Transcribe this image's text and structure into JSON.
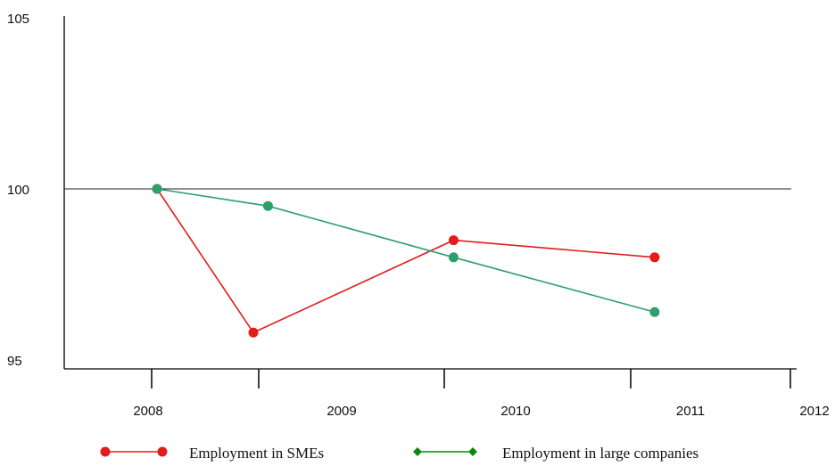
{
  "chart_data": {
    "type": "line",
    "title": "",
    "xlabel": "",
    "ylabel": "",
    "ylim": [
      95,
      105
    ],
    "y_ticks": [
      "95",
      "100",
      "105"
    ],
    "x_ticks": [
      "2008",
      "2009",
      "2010",
      "2011",
      "2012"
    ],
    "reference_line": 100,
    "grid": false,
    "legend_position": "bottom",
    "series": [
      {
        "name": "Employment in SMEs",
        "color": "#e31b1b",
        "marker": "circle",
        "points": [
          {
            "x": 2008.05,
            "y": 100.0
          },
          {
            "x": 2008.95,
            "y": 95.8
          },
          {
            "x": 2010.05,
            "y": 98.5
          },
          {
            "x": 2011.15,
            "y": 98.0
          }
        ]
      },
      {
        "name": "Employment in large companies",
        "color": "#2e9e6b",
        "legend_color": "#0a8a0a",
        "marker": "circle",
        "points": [
          {
            "x": 2008.05,
            "y": 100.0
          },
          {
            "x": 2009.05,
            "y": 99.5
          },
          {
            "x": 2010.05,
            "y": 98.0
          },
          {
            "x": 2011.15,
            "y": 96.4
          }
        ]
      }
    ]
  }
}
